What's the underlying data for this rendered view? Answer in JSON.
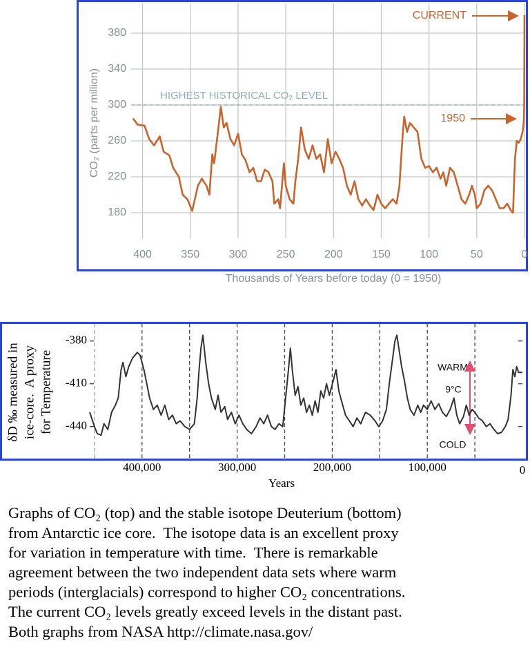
{
  "chart_data": [
    {
      "type": "line",
      "xlabel": "Thousands of Years before today (0 = 1950)",
      "ylabel": "CO₂ (parts per million)",
      "xlim": [
        412,
        0
      ],
      "ylim": [
        150,
        410
      ],
      "xticks": [
        400,
        350,
        300,
        250,
        200,
        150,
        100,
        50,
        0
      ],
      "yticks": [
        180,
        220,
        260,
        300,
        340,
        380
      ],
      "grid": true,
      "color": "#c8642d",
      "reference_line": {
        "value": 300,
        "label": "HIGHEST HISTORICAL CO₂ LEVEL"
      },
      "annotations": [
        "CURRENT",
        "1950"
      ],
      "x": [
        410,
        405,
        398,
        393,
        388,
        382,
        378,
        372,
        368,
        362,
        358,
        353,
        348,
        342,
        338,
        333,
        330,
        327,
        325,
        320,
        318,
        315,
        312,
        308,
        304,
        300,
        296,
        292,
        288,
        284,
        280,
        276,
        272,
        268,
        264,
        262,
        258,
        256,
        252,
        250,
        246,
        242,
        240,
        237,
        234,
        230,
        226,
        222,
        218,
        214,
        210,
        206,
        202,
        198,
        194,
        190,
        186,
        182,
        178,
        174,
        170,
        166,
        162,
        158,
        154,
        150,
        146,
        142,
        138,
        134,
        131,
        128,
        126,
        123,
        120,
        116,
        112,
        108,
        104,
        100,
        96,
        92,
        88,
        85,
        82,
        78,
        74,
        70,
        66,
        62,
        58,
        55,
        52,
        50,
        46,
        42,
        38,
        34,
        30,
        26,
        22,
        18,
        14,
        12,
        10,
        8,
        6,
        4,
        2,
        0.8,
        0.3,
        0
      ],
      "values": [
        285,
        278,
        277,
        262,
        255,
        265,
        248,
        244,
        230,
        220,
        200,
        195,
        182,
        210,
        218,
        210,
        200,
        245,
        235,
        280,
        298,
        275,
        280,
        262,
        255,
        268,
        245,
        238,
        225,
        230,
        215,
        215,
        228,
        225,
        215,
        190,
        195,
        185,
        235,
        210,
        195,
        190,
        215,
        240,
        275,
        250,
        240,
        255,
        240,
        245,
        225,
        262,
        235,
        248,
        240,
        230,
        210,
        200,
        215,
        195,
        188,
        195,
        188,
        183,
        200,
        190,
        185,
        190,
        195,
        190,
        210,
        260,
        287,
        270,
        280,
        275,
        270,
        240,
        230,
        232,
        225,
        230,
        218,
        225,
        210,
        230,
        225,
        210,
        195,
        190,
        200,
        210,
        200,
        185,
        190,
        205,
        210,
        205,
        195,
        185,
        185,
        190,
        182,
        180,
        240,
        260,
        258,
        262,
        270,
        280,
        300,
        400
      ]
    },
    {
      "type": "line",
      "xlabel": "Years",
      "ylabel": [
        "δD ‰ measured in",
        "ice-core.  A proxy",
        "for Temperature"
      ],
      "xlim": [
        455000,
        0
      ],
      "ylim": [
        -460,
        -368
      ],
      "xticks": [
        {
          "value": 400000,
          "label": "400,000"
        },
        {
          "value": 300000,
          "label": "300,000"
        },
        {
          "value": 200000,
          "label": "200,000"
        },
        {
          "value": 100000,
          "label": "100,000"
        },
        0
      ],
      "yticks": [
        -380,
        -410,
        -440
      ],
      "xgrid": [
        450000,
        400000,
        350000,
        300000,
        250000,
        200000,
        150000,
        100000,
        50000
      ],
      "color": "#333333",
      "annotations": [
        "WARM",
        "9°C",
        "COLD"
      ],
      "x": [
        455000,
        450000,
        447000,
        443000,
        440000,
        436000,
        432000,
        428000,
        425000,
        422000,
        420000,
        417000,
        414000,
        410000,
        405000,
        402000,
        398000,
        395000,
        392000,
        388000,
        384000,
        380000,
        376000,
        372000,
        368000,
        364000,
        360000,
        355000,
        350000,
        345000,
        342000,
        340000,
        338000,
        336000,
        333000,
        330000,
        327000,
        323000,
        320000,
        317000,
        313000,
        310000,
        306000,
        302000,
        298000,
        294000,
        290000,
        285000,
        280000,
        276000,
        272000,
        268000,
        264000,
        260000,
        256000,
        252000,
        249000,
        246000,
        244000,
        242000,
        239000,
        236000,
        233000,
        230000,
        227000,
        224000,
        221000,
        218000,
        215000,
        212000,
        209000,
        206000,
        203000,
        199000,
        196000,
        193000,
        189000,
        186000,
        182000,
        178000,
        174000,
        170000,
        165000,
        160000,
        155000,
        151000,
        147000,
        143000,
        140000,
        137000,
        134000,
        132000,
        130000,
        127000,
        124000,
        121000,
        118000,
        114000,
        110000,
        107000,
        104000,
        100000,
        96000,
        92000,
        88000,
        84000,
        80000,
        76000,
        72000,
        69000,
        66000,
        62000,
        59000,
        56000,
        53000,
        50000,
        46000,
        42000,
        38000,
        34000,
        30000,
        26000,
        22000,
        18000,
        15000,
        12000,
        10000,
        8000,
        6000,
        4000,
        2000,
        0
      ],
      "values": [
        -430,
        -440,
        -445,
        -446,
        -438,
        -442,
        -430,
        -425,
        -420,
        -400,
        -395,
        -405,
        -398,
        -392,
        -388,
        -390,
        -400,
        -410,
        -420,
        -428,
        -425,
        -432,
        -425,
        -435,
        -432,
        -438,
        -436,
        -440,
        -442,
        -438,
        -420,
        -400,
        -385,
        -376,
        -395,
        -410,
        -420,
        -428,
        -418,
        -430,
        -426,
        -435,
        -430,
        -438,
        -432,
        -438,
        -442,
        -445,
        -440,
        -434,
        -438,
        -432,
        -440,
        -442,
        -438,
        -440,
        -420,
        -400,
        -385,
        -400,
        -418,
        -412,
        -425,
        -420,
        -430,
        -425,
        -432,
        -422,
        -430,
        -415,
        -420,
        -410,
        -418,
        -408,
        -400,
        -415,
        -425,
        -432,
        -436,
        -440,
        -434,
        -438,
        -430,
        -432,
        -436,
        -440,
        -436,
        -428,
        -410,
        -395,
        -380,
        -376,
        -385,
        -398,
        -408,
        -420,
        -428,
        -432,
        -425,
        -430,
        -425,
        -428,
        -422,
        -428,
        -424,
        -430,
        -433,
        -428,
        -420,
        -432,
        -438,
        -433,
        -425,
        -432,
        -428,
        -430,
        -434,
        -436,
        -440,
        -438,
        -442,
        -445,
        -444,
        -440,
        -435,
        -418,
        -400,
        -405,
        -398,
        -402,
        -402,
        -402
      ]
    }
  ],
  "caption": {
    "lines": [
      "Graphs of CO₂ (top) and the stable isotope Deuterium (bottom)",
      "from Antarctic ice core.  The isotope data is an excellent proxy",
      "for variation in temperature with time.  There is remarkable",
      "agreement between the two independent data sets where warm",
      "periods (interglacials) correspond to higher CO₂ concentrations.",
      "The current CO₂ levels greatly exceed levels in the distant past.",
      "Both graphs from NASA http://climate.nasa.gov/"
    ]
  }
}
